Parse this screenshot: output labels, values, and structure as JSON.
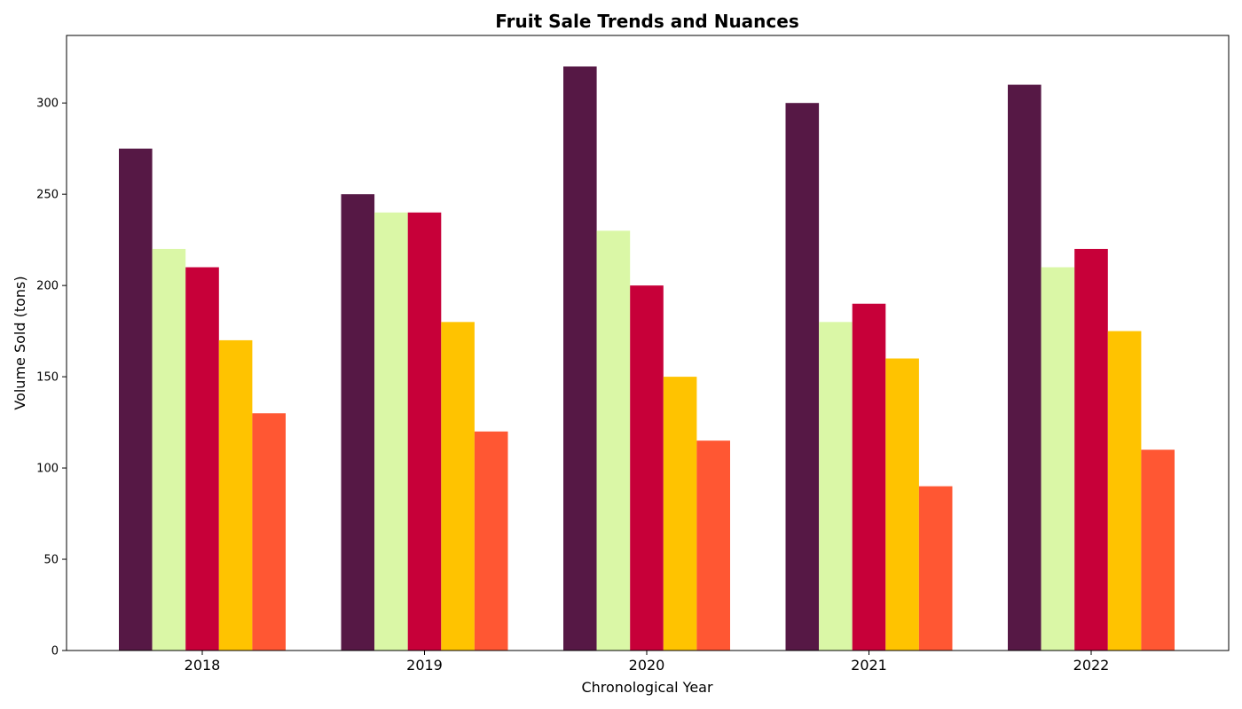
{
  "chart_data": {
    "type": "bar",
    "title": "Fruit Sale Trends and Nuances",
    "xlabel": "Chronological Year",
    "ylabel": "Volume Sold (tons)",
    "categories": [
      "2018",
      "2019",
      "2020",
      "2021",
      "2022"
    ],
    "ylim": [
      0,
      337
    ],
    "yticks": [
      0,
      50,
      100,
      150,
      200,
      250,
      300
    ],
    "grid": false,
    "legend": "none",
    "series": [
      {
        "color": "#561845",
        "values": [
          275,
          250,
          320,
          300,
          310
        ]
      },
      {
        "color": "#DAF7A6",
        "values": [
          220,
          240,
          230,
          180,
          210
        ]
      },
      {
        "color": "#C70039",
        "values": [
          210,
          240,
          200,
          190,
          220
        ]
      },
      {
        "color": "#FFC300",
        "values": [
          170,
          180,
          150,
          160,
          175
        ]
      },
      {
        "color": "#FF5733",
        "values": [
          130,
          120,
          115,
          90,
          110
        ]
      }
    ]
  }
}
